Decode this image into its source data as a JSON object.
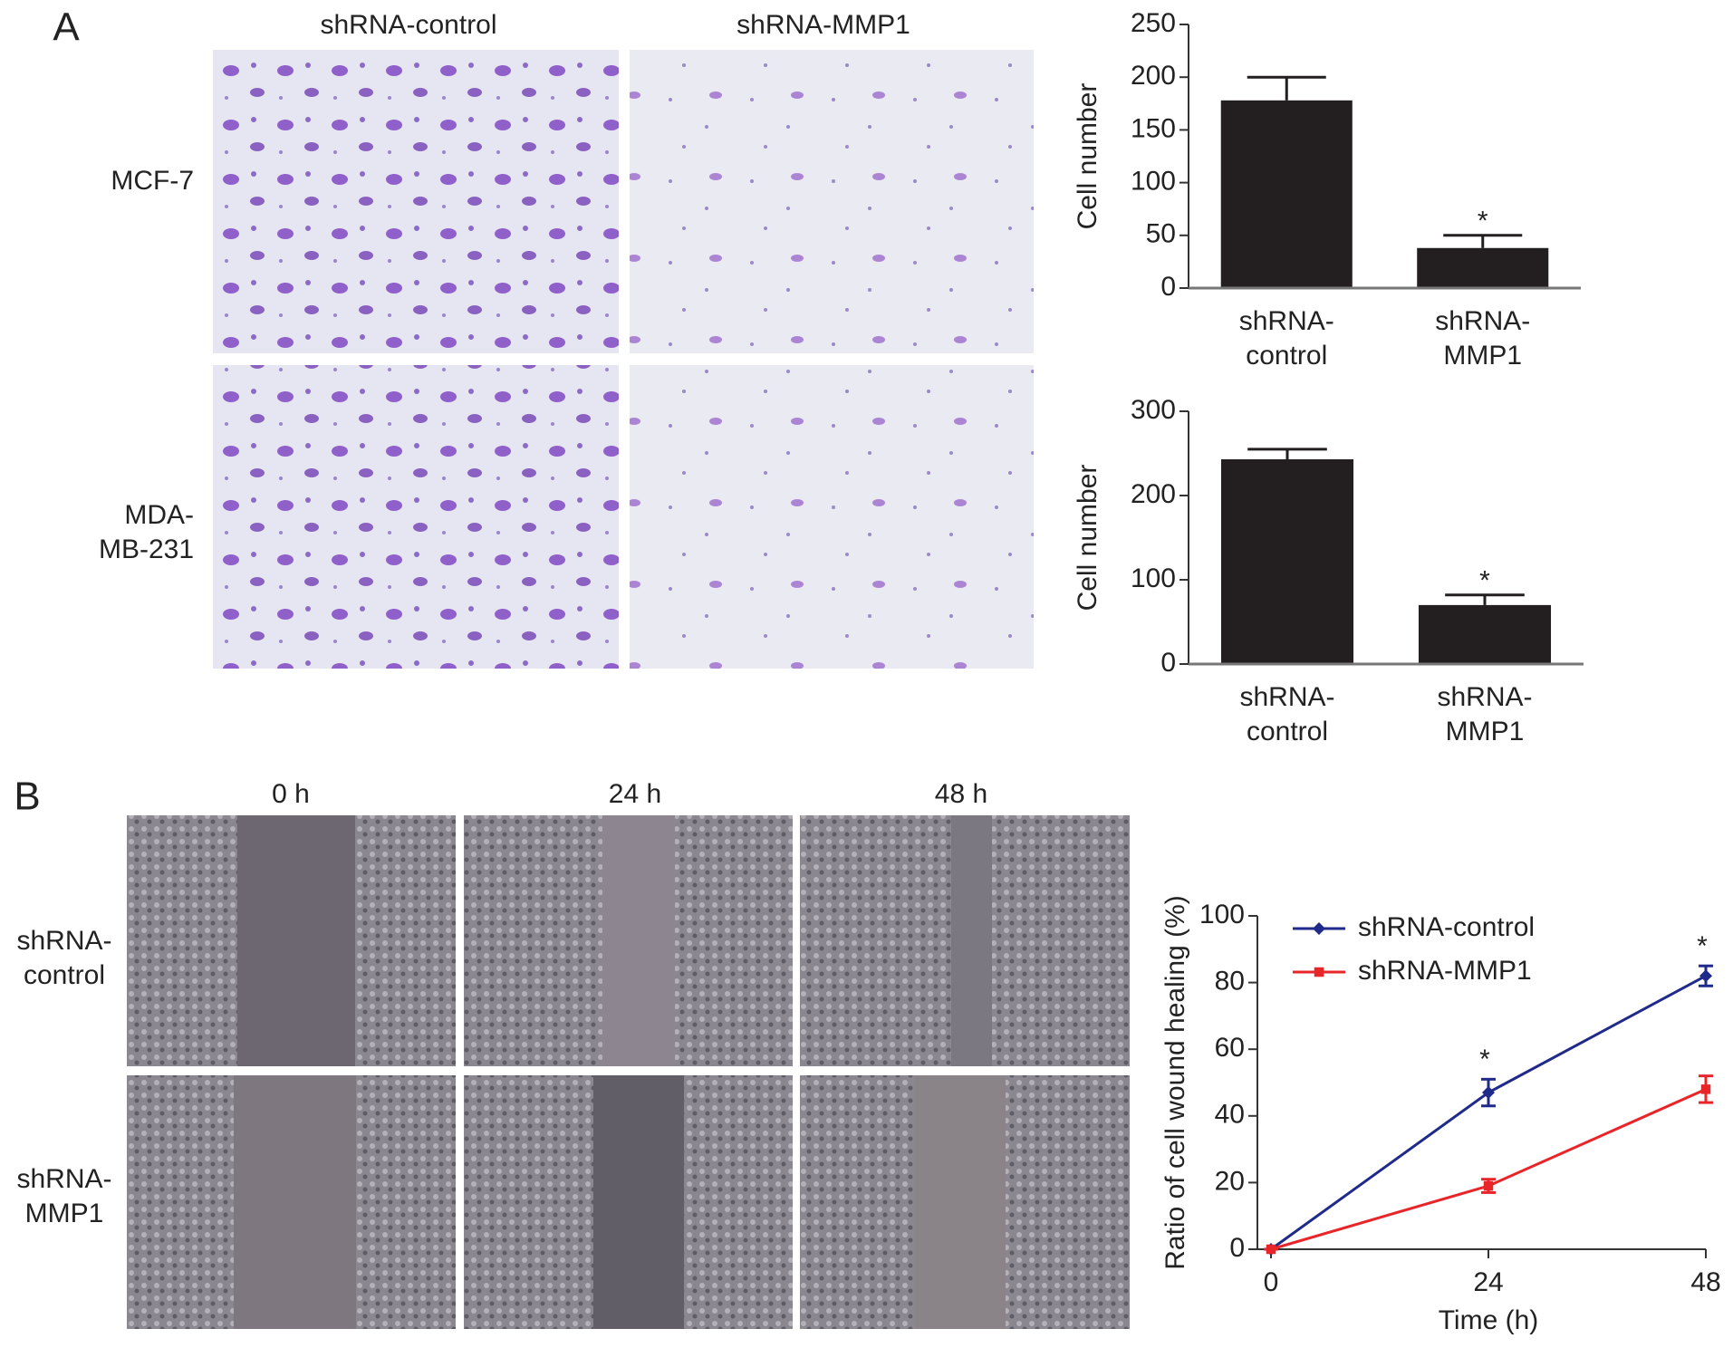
{
  "figure": {
    "panel_a": "A",
    "panel_b": "B",
    "a_columns": [
      "shRNA-control",
      "shRNA-MMP1"
    ],
    "a_rows": [
      "MCF-7",
      "MDA-MB-231"
    ],
    "b_columns": [
      "0 h",
      "24 h",
      "48 h"
    ],
    "b_rows": [
      "shRNA-control",
      "shRNA-MMP1"
    ]
  },
  "chart_data": [
    {
      "type": "bar",
      "ylabel": "Cell number",
      "categories": [
        "shRNA-control",
        "shRNA-MMP1"
      ],
      "values": [
        178,
        38
      ],
      "errors": [
        22,
        12
      ],
      "significance": [
        null,
        "*"
      ],
      "color": "#231f20",
      "ylim": [
        0,
        250
      ],
      "yticks": [
        0,
        50,
        100,
        150,
        200,
        250
      ]
    },
    {
      "type": "bar",
      "ylabel": "Cell number",
      "categories": [
        "shRNA-control",
        "shRNA-MMP1"
      ],
      "values": [
        243,
        70
      ],
      "errors": [
        12,
        12
      ],
      "significance": [
        null,
        "*"
      ],
      "color": "#231f20",
      "ylim": [
        0,
        300
      ],
      "yticks": [
        0,
        100,
        200,
        300
      ]
    },
    {
      "type": "line",
      "xlabel": "Time (h)",
      "ylabel": "Ratio of cell wound healing (%)",
      "x": [
        0,
        24,
        48
      ],
      "xlim": [
        0,
        48
      ],
      "xticks": [
        0,
        24,
        48
      ],
      "ylim": [
        0,
        100
      ],
      "yticks": [
        0,
        20,
        40,
        60,
        80,
        100
      ],
      "legend": "upper left",
      "series": [
        {
          "name": "shRNA-control",
          "color": "#1f2a8a",
          "marker": "diamond",
          "values": [
            0,
            47,
            82
          ],
          "errors": [
            0,
            4,
            3
          ],
          "significance": [
            null,
            "*",
            "*"
          ]
        },
        {
          "name": "shRNA-MMP1",
          "color": "#e8262a",
          "marker": "square",
          "values": [
            0,
            19,
            48
          ],
          "errors": [
            0,
            2,
            4
          ]
        }
      ]
    }
  ]
}
